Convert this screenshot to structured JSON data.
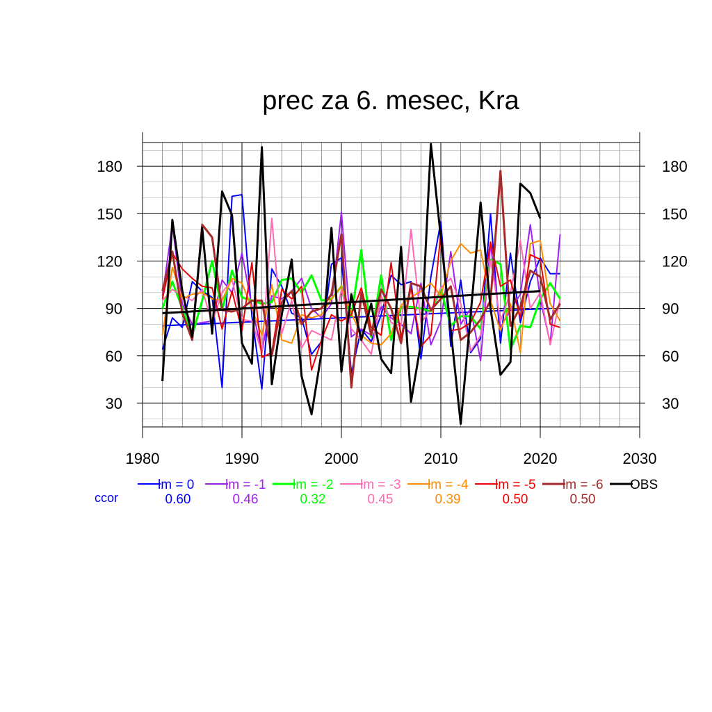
{
  "chart_data": {
    "type": "line",
    "title": "prec za 6. mesec, Kra",
    "xlabel": "",
    "ylabel": "",
    "xlim": [
      1980,
      2030
    ],
    "ylim": [
      15,
      195
    ],
    "x_ticks": [
      1980,
      1990,
      2000,
      2010,
      2020,
      2030
    ],
    "y_ticks": [
      30,
      60,
      90,
      120,
      150,
      180
    ],
    "x_tick_labels": [
      "1980",
      "1990",
      "2000",
      "2010",
      "2020",
      "2030"
    ],
    "y_tick_labels": [
      "30",
      "60",
      "90",
      "120",
      "150",
      "180"
    ],
    "grid": true,
    "legend_position": "bottom",
    "ccor_label": "ccor",
    "series": [
      {
        "name": "lm = 0",
        "color": "#0000ff",
        "ccor": "0.60",
        "width": 2,
        "start": 1982,
        "values": [
          64,
          84,
          78,
          107,
          101,
          97,
          40,
          161,
          162,
          85,
          39,
          115,
          104,
          87,
          84,
          61,
          69,
          118,
          122,
          49,
          77,
          69,
          86,
          111,
          105,
          107,
          58,
          110,
          145,
          66,
          108,
          62,
          71,
          150,
          68,
          125,
          81,
          107,
          122,
          112,
          112
        ],
        "trend": [
          [
            1982,
            79
          ],
          [
            2021,
            90
          ]
        ]
      },
      {
        "name": "lm = -1",
        "color": "#a020f0",
        "ccor": "0.46",
        "width": 2,
        "start": 1982,
        "values": [
          98,
          143,
          93,
          80,
          81,
          82,
          108,
          100,
          125,
          91,
          62,
          98,
          96,
          101,
          109,
          90,
          84,
          93,
          151,
          72,
          77,
          73,
          91,
          84,
          80,
          74,
          106,
          67,
          82,
          126,
          80,
          90,
          57,
          131,
          78,
          89,
          99,
          143,
          96,
          68,
          137
        ]
      },
      {
        "name": "lm = -2",
        "color": "#00ff00",
        "ccor": "0.32",
        "width": 3,
        "start": 1982,
        "values": [
          90,
          107,
          90,
          73,
          95,
          120,
          89,
          114,
          97,
          95,
          93,
          94,
          108,
          109,
          100,
          111,
          95,
          96,
          104,
          85,
          127,
          72,
          111,
          70,
          91,
          91,
          90,
          88,
          102,
          79,
          85,
          85,
          77,
          121,
          118,
          64,
          79,
          78,
          96,
          106,
          96
        ]
      },
      {
        "name": "lm = -3",
        "color": "#ff69b4",
        "ccor": "0.45",
        "width": 2,
        "start": 1982,
        "values": [
          95,
          102,
          98,
          95,
          102,
          81,
          100,
          108,
          83,
          82,
          62,
          147,
          74,
          95,
          65,
          76,
          73,
          70,
          102,
          77,
          70,
          61,
          98,
          81,
          79,
          140,
          81,
          89,
          103,
          109,
          93,
          63,
          73,
          121,
          82,
          100,
          133,
          90,
          100,
          67,
          96
        ]
      },
      {
        "name": "lm = -4",
        "color": "#ff8c00",
        "ccor": "0.39",
        "width": 2,
        "start": 1982,
        "values": [
          73,
          116,
          96,
          99,
          100,
          96,
          95,
          109,
          106,
          90,
          73,
          105,
          70,
          68,
          86,
          84,
          86,
          96,
          104,
          87,
          73,
          68,
          67,
          74,
          92,
          97,
          101,
          106,
          98,
          120,
          131,
          125,
          127,
          95,
          76,
          93,
          62,
          131,
          133,
          93,
          82
        ]
      },
      {
        "name": "lm = -5",
        "color": "#ee0000",
        "ccor": "0.50",
        "width": 2,
        "start": 1982,
        "values": [
          96,
          125,
          115,
          109,
          104,
          103,
          77,
          101,
          76,
          119,
          59,
          62,
          102,
          96,
          104,
          51,
          70,
          86,
          82,
          86,
          103,
          78,
          73,
          119,
          71,
          103,
          66,
          73,
          138,
          76,
          77,
          81,
          94,
          132,
          104,
          108,
          84,
          124,
          121,
          80,
          78
        ]
      },
      {
        "name": "lm = -6",
        "color": "#a52a2a",
        "ccor": "0.50",
        "width": 3,
        "start": 1982,
        "values": [
          101,
          126,
          87,
          70,
          143,
          135,
          89,
          88,
          90,
          95,
          95,
          60,
          94,
          101,
          80,
          88,
          90,
          99,
          137,
          40,
          100,
          73,
          102,
          90,
          68,
          106,
          104,
          89,
          96,
          104,
          70,
          75,
          83,
          95,
          177,
          79,
          91,
          114,
          110,
          83,
          93
        ]
      },
      {
        "name": "OBS",
        "color": "#000000",
        "ccor": "",
        "width": 3,
        "start": 1982,
        "values": [
          44,
          146,
          101,
          72,
          141,
          74,
          164,
          149,
          68,
          55,
          192,
          42,
          86,
          121,
          47,
          23,
          62,
          141,
          50,
          99,
          70,
          93,
          58,
          49,
          129,
          31,
          68,
          194,
          135,
          76,
          17,
          86,
          157,
          90,
          48,
          56,
          169,
          163,
          147
        ],
        "trend": [
          [
            1982,
            87
          ],
          [
            2020,
            101
          ]
        ]
      }
    ]
  }
}
